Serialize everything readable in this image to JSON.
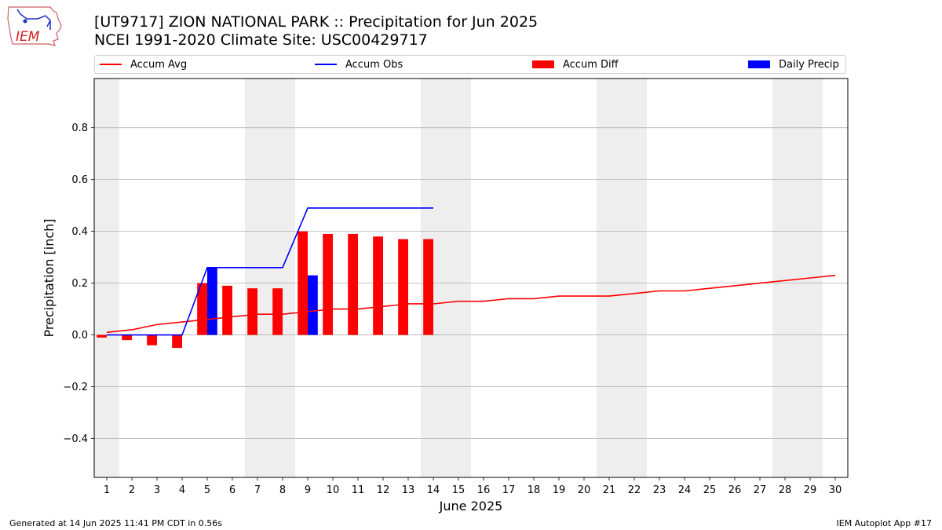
{
  "header": {
    "title_line1": "[UT9717] ZION NATIONAL PARK :: Precipitation for Jun 2025",
    "title_line2": "NCEI 1991-2020 Climate Site: USC00429717",
    "logo_text": "IEM"
  },
  "legend": {
    "accum_avg": "Accum Avg",
    "accum_obs": "Accum Obs",
    "accum_diff": "Accum Diff",
    "daily_precip": "Daily Precip"
  },
  "footer": {
    "generated": "Generated at 14 Jun 2025 11:41 PM CDT in 0.56s",
    "app": "IEM Autoplot App #17"
  },
  "colors": {
    "avg": "#ff0000",
    "obs": "#0000ff",
    "diff": "#ff0000",
    "daily": "#0000ff",
    "weekend_shade": "#eeeeee",
    "grid": "#b0b0b0"
  },
  "chart_data": {
    "type": "bar",
    "xlabel": "June 2025",
    "ylabel": "Precipitation [inch]",
    "xlim": [
      0.5,
      30.5
    ],
    "ylim": [
      -0.55,
      0.99
    ],
    "yticks": [
      -0.4,
      -0.2,
      0.0,
      0.2,
      0.4,
      0.6,
      0.8
    ],
    "ytick_labels": [
      "−0.4",
      "−0.2",
      "0.0",
      "0.2",
      "0.4",
      "0.6",
      "0.8"
    ],
    "xticks": [
      1,
      2,
      3,
      4,
      5,
      6,
      7,
      8,
      9,
      10,
      11,
      12,
      13,
      14,
      15,
      16,
      17,
      18,
      19,
      20,
      21,
      22,
      23,
      24,
      25,
      26,
      27,
      28,
      29,
      30
    ],
    "xtick_labels": [
      "1",
      "2",
      "3",
      "4",
      "5",
      "6",
      "7",
      "8",
      "9",
      "10",
      "11",
      "12",
      "13",
      "14",
      "15",
      "16",
      "17",
      "18",
      "19",
      "20",
      "21",
      "22",
      "23",
      "24",
      "25",
      "26",
      "27",
      "28",
      "29",
      "30"
    ],
    "grid": "y",
    "legend_position": "top",
    "weekend_shading": [
      [
        1,
        1
      ],
      [
        7,
        8
      ],
      [
        14,
        15
      ],
      [
        21,
        22
      ],
      [
        28,
        29
      ]
    ],
    "series": [
      {
        "name": "Accum Avg",
        "type": "line",
        "x": [
          1,
          2,
          3,
          4,
          5,
          6,
          7,
          8,
          9,
          10,
          11,
          12,
          13,
          14,
          15,
          16,
          17,
          18,
          19,
          20,
          21,
          22,
          23,
          24,
          25,
          26,
          27,
          28,
          29,
          30
        ],
        "values": [
          0.01,
          0.02,
          0.04,
          0.05,
          0.06,
          0.07,
          0.08,
          0.08,
          0.09,
          0.1,
          0.1,
          0.11,
          0.12,
          0.12,
          0.13,
          0.13,
          0.14,
          0.14,
          0.15,
          0.15,
          0.15,
          0.16,
          0.17,
          0.17,
          0.18,
          0.19,
          0.2,
          0.21,
          0.22,
          0.23
        ]
      },
      {
        "name": "Accum Obs",
        "type": "line",
        "x": [
          1,
          2,
          3,
          4,
          5,
          6,
          7,
          8,
          9,
          10,
          11,
          12,
          13,
          14
        ],
        "values": [
          0.0,
          0.0,
          0.0,
          0.0,
          0.26,
          0.26,
          0.26,
          0.26,
          0.49,
          0.49,
          0.49,
          0.49,
          0.49,
          0.49
        ]
      },
      {
        "name": "Accum Diff",
        "type": "bar",
        "x": [
          1,
          2,
          3,
          4,
          5,
          6,
          7,
          8,
          9,
          10,
          11,
          12,
          13,
          14
        ],
        "values": [
          -0.01,
          -0.02,
          -0.04,
          -0.05,
          0.2,
          0.19,
          0.18,
          0.18,
          0.4,
          0.39,
          0.39,
          0.38,
          0.37,
          0.37
        ]
      },
      {
        "name": "Daily Precip",
        "type": "bar",
        "x": [
          5,
          9
        ],
        "values": [
          0.26,
          0.23
        ]
      }
    ]
  }
}
